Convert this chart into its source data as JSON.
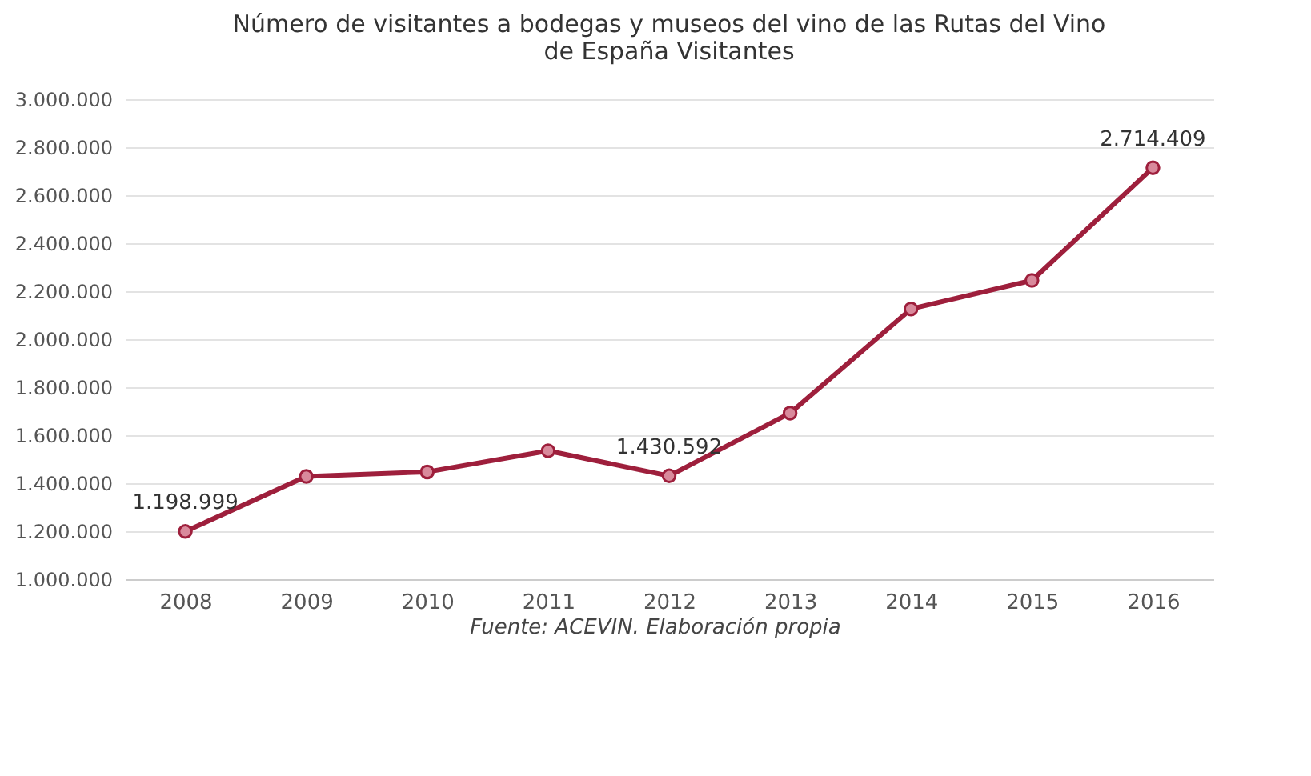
{
  "chart_data": {
    "type": "line",
    "title": [
      "Número de visitantes a bodegas y museos del vino de las Rutas del Vino",
      "de España Visitantes"
    ],
    "categories": [
      "2008",
      "2009",
      "2010",
      "2011",
      "2012",
      "2013",
      "2014",
      "2015",
      "2016"
    ],
    "series": [
      {
        "color": "#9e1f3c",
        "values": [
          1198999,
          1428000,
          1447000,
          1535000,
          1430592,
          1692000,
          2126000,
          2245000,
          2714409
        ],
        "value_labels": [
          "1.198.999",
          null,
          null,
          null,
          "1.430.592",
          null,
          null,
          null,
          "2.714.409"
        ]
      }
    ],
    "ylim": [
      1000000,
      3000000
    ],
    "yticks": [
      {
        "value": 1000000,
        "label": "1.000.000"
      },
      {
        "value": 1200000,
        "label": "1.200.000"
      },
      {
        "value": 1400000,
        "label": "1.400.000"
      },
      {
        "value": 1600000,
        "label": "1.600.000"
      },
      {
        "value": 1800000,
        "label": "1.800.000"
      },
      {
        "value": 2000000,
        "label": "2.000.000"
      },
      {
        "value": 2200000,
        "label": "2.200.000"
      },
      {
        "value": 2400000,
        "label": "2.400.000"
      },
      {
        "value": 2600000,
        "label": "2.600.000"
      },
      {
        "value": 2800000,
        "label": "2.800.000"
      },
      {
        "value": 3000000,
        "label": "3.000.000"
      }
    ],
    "grid": "y",
    "marker": "circle",
    "line_style": "solid",
    "annotations": [
      "Fuente: ACEVIN. Elaboración propia"
    ]
  }
}
